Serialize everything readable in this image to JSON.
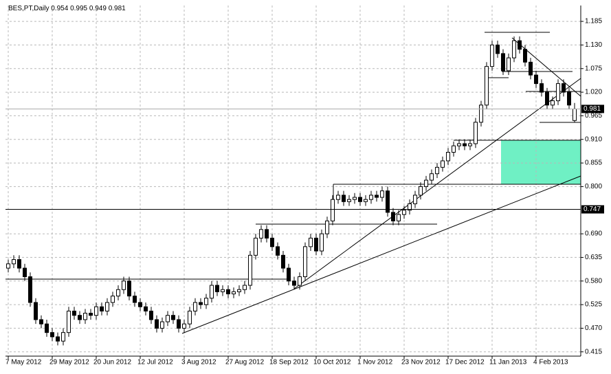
{
  "chart_data": {
    "type": "candlestick",
    "title": "BES,PT,Daily",
    "categories": [
      "7 May 2012",
      null,
      null,
      null,
      null,
      null,
      null,
      null,
      "29 May 2012",
      null,
      null,
      null,
      null,
      null,
      null,
      null,
      "20 Jun 2012",
      null,
      null,
      null,
      null,
      null,
      null,
      null,
      "12 Jul 2012",
      null,
      null,
      null,
      null,
      null,
      null,
      null,
      "3 Aug 2012",
      null,
      null,
      null,
      null,
      null,
      null,
      null,
      "27 Aug 2012",
      null,
      null,
      null,
      null,
      null,
      null,
      null,
      "18 Sep 2012",
      null,
      null,
      null,
      null,
      null,
      null,
      null,
      "10 Oct 2012",
      null,
      null,
      null,
      null,
      null,
      null,
      null,
      "1 Nov 2012",
      null,
      null,
      null,
      null,
      null,
      null,
      null,
      "23 Nov 2012",
      null,
      null,
      null,
      null,
      null,
      null,
      null,
      "17 Dec 2012",
      null,
      null,
      null,
      null,
      null,
      null,
      null,
      "11 Jan 2013",
      null,
      null,
      null,
      null,
      null,
      null,
      null,
      "4 Feb 2013",
      null,
      null,
      null,
      null,
      null,
      null,
      null
    ],
    "open": [
      0.61,
      0.62,
      0.63,
      0.61,
      0.59,
      0.53,
      0.49,
      0.48,
      0.46,
      0.45,
      0.44,
      0.46,
      0.51,
      0.5,
      0.49,
      0.505,
      0.5,
      0.52,
      0.51,
      0.53,
      0.545,
      0.56,
      0.58,
      0.545,
      0.53,
      0.52,
      0.51,
      0.49,
      0.47,
      0.485,
      0.5,
      0.49,
      0.47,
      0.48,
      0.51,
      0.53,
      0.525,
      0.54,
      0.57,
      0.555,
      0.56,
      0.55,
      0.555,
      0.56,
      0.57,
      0.64,
      0.68,
      0.7,
      0.68,
      0.66,
      0.64,
      0.61,
      0.58,
      0.57,
      0.59,
      0.66,
      0.68,
      0.65,
      0.69,
      0.72,
      0.77,
      0.78,
      0.765,
      0.77,
      0.775,
      0.765,
      0.77,
      0.78,
      0.775,
      0.79,
      0.74,
      0.72,
      0.735,
      0.745,
      0.76,
      0.78,
      0.8,
      0.815,
      0.83,
      0.845,
      0.86,
      0.88,
      0.895,
      0.9,
      0.895,
      0.9,
      0.95,
      0.99,
      1.08,
      1.13,
      1.11,
      1.07,
      1.1,
      1.14,
      1.12,
      1.09,
      1.06,
      1.04,
      1.02,
      0.99,
      1.0,
      1.04,
      1.02,
      0.954
    ],
    "high": [
      0.63,
      0.64,
      0.64,
      0.62,
      0.6,
      0.54,
      0.5,
      0.49,
      0.47,
      0.46,
      0.47,
      0.52,
      0.52,
      0.51,
      0.515,
      0.515,
      0.53,
      0.53,
      0.54,
      0.555,
      0.57,
      0.59,
      0.59,
      0.555,
      0.54,
      0.53,
      0.52,
      0.5,
      0.495,
      0.51,
      0.51,
      0.5,
      0.49,
      0.52,
      0.54,
      0.54,
      0.55,
      0.58,
      0.58,
      0.57,
      0.57,
      0.565,
      0.57,
      0.58,
      0.65,
      0.69,
      0.71,
      0.71,
      0.69,
      0.67,
      0.65,
      0.62,
      0.59,
      0.6,
      0.67,
      0.69,
      0.69,
      0.7,
      0.73,
      0.78,
      0.79,
      0.79,
      0.78,
      0.785,
      0.785,
      0.78,
      0.79,
      0.79,
      0.8,
      0.8,
      0.75,
      0.745,
      0.755,
      0.77,
      0.79,
      0.81,
      0.825,
      0.84,
      0.855,
      0.87,
      0.89,
      0.905,
      0.91,
      0.91,
      0.91,
      0.96,
      1.0,
      1.09,
      1.14,
      1.14,
      1.12,
      1.11,
      1.15,
      1.15,
      1.13,
      1.1,
      1.07,
      1.05,
      1.03,
      1.01,
      1.05,
      1.05,
      1.03,
      0.995
    ],
    "low": [
      0.6,
      0.61,
      0.6,
      0.58,
      0.52,
      0.48,
      0.47,
      0.45,
      0.44,
      0.43,
      0.43,
      0.45,
      0.49,
      0.48,
      0.48,
      0.49,
      0.49,
      0.5,
      0.5,
      0.52,
      0.535,
      0.55,
      0.535,
      0.52,
      0.51,
      0.5,
      0.48,
      0.46,
      0.46,
      0.475,
      0.48,
      0.46,
      0.46,
      0.47,
      0.5,
      0.515,
      0.515,
      0.53,
      0.545,
      0.545,
      0.54,
      0.54,
      0.545,
      0.55,
      0.56,
      0.63,
      0.67,
      0.67,
      0.65,
      0.63,
      0.6,
      0.57,
      0.56,
      0.56,
      0.58,
      0.65,
      0.64,
      0.64,
      0.68,
      0.71,
      0.76,
      0.755,
      0.755,
      0.76,
      0.755,
      0.755,
      0.76,
      0.765,
      0.765,
      0.73,
      0.71,
      0.71,
      0.725,
      0.735,
      0.75,
      0.77,
      0.79,
      0.805,
      0.82,
      0.835,
      0.85,
      0.87,
      0.885,
      0.885,
      0.885,
      0.89,
      0.94,
      0.98,
      1.07,
      1.1,
      1.06,
      1.06,
      1.09,
      1.11,
      1.08,
      1.05,
      1.03,
      1.01,
      0.98,
      0.98,
      0.99,
      1.01,
      0.98,
      0.949
    ],
    "close": [
      0.62,
      0.63,
      0.61,
      0.59,
      0.53,
      0.49,
      0.48,
      0.46,
      0.45,
      0.44,
      0.46,
      0.51,
      0.5,
      0.49,
      0.505,
      0.5,
      0.52,
      0.51,
      0.53,
      0.545,
      0.56,
      0.58,
      0.545,
      0.53,
      0.52,
      0.51,
      0.49,
      0.47,
      0.485,
      0.5,
      0.49,
      0.47,
      0.48,
      0.51,
      0.53,
      0.525,
      0.54,
      0.57,
      0.555,
      0.56,
      0.55,
      0.555,
      0.56,
      0.57,
      0.64,
      0.68,
      0.7,
      0.68,
      0.66,
      0.64,
      0.61,
      0.58,
      0.57,
      0.59,
      0.66,
      0.68,
      0.65,
      0.69,
      0.72,
      0.77,
      0.78,
      0.765,
      0.77,
      0.775,
      0.765,
      0.77,
      0.78,
      0.775,
      0.79,
      0.74,
      0.72,
      0.735,
      0.745,
      0.76,
      0.78,
      0.8,
      0.815,
      0.83,
      0.845,
      0.86,
      0.88,
      0.895,
      0.9,
      0.895,
      0.9,
      0.95,
      0.99,
      1.08,
      1.13,
      1.11,
      1.07,
      1.1,
      1.14,
      1.12,
      1.09,
      1.06,
      1.04,
      1.02,
      0.99,
      1.0,
      1.04,
      1.02,
      0.99,
      0.981
    ],
    "ylim": [
      0.405,
      1.222
    ],
    "yticks": [
      {
        "value": 0.415,
        "label": "0.415"
      },
      {
        "value": 0.47,
        "label": "0.470"
      },
      {
        "value": 0.525,
        "label": "0.525"
      },
      {
        "value": 0.58,
        "label": "0.580"
      },
      {
        "value": 0.635,
        "label": "0.635"
      },
      {
        "value": 0.69,
        "label": "0.690"
      },
      {
        "value": 0.8,
        "label": "0.800"
      },
      {
        "value": 0.855,
        "label": "0.855"
      },
      {
        "value": 0.91,
        "label": "0.910"
      },
      {
        "value": 0.965,
        "label": "0.965"
      },
      {
        "value": 1.02,
        "label": "1.020"
      },
      {
        "value": 1.075,
        "label": "1.075"
      },
      {
        "value": 1.13,
        "label": "1.130"
      },
      {
        "value": 1.185,
        "label": "1.185"
      }
    ],
    "levels": [
      0.747
    ],
    "grid": true
  }
}
